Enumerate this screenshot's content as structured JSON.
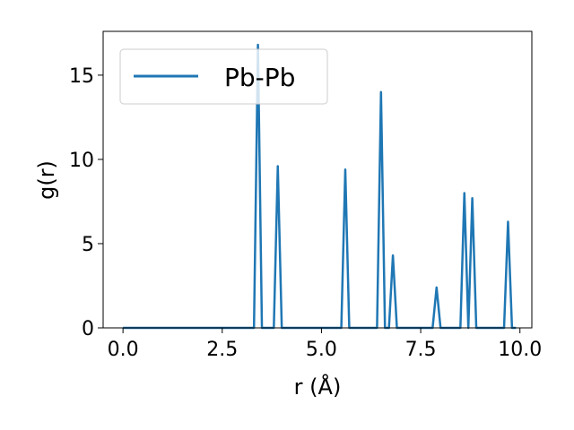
{
  "chart_data": {
    "type": "line",
    "title": "",
    "xlabel": "r (Å)",
    "ylabel": "g(r)",
    "xlim": [
      -0.5,
      10.3
    ],
    "ylim": [
      0,
      17.6
    ],
    "grid": false,
    "legend_position": "top-left",
    "x_ticks": [
      0.0,
      2.5,
      5.0,
      7.5,
      10.0
    ],
    "x_tick_labels": [
      "0.0",
      "2.5",
      "5.0",
      "7.5",
      "10.0"
    ],
    "y_ticks": [
      0,
      5,
      10,
      15
    ],
    "y_tick_labels": [
      "0",
      "5",
      "10",
      "15"
    ],
    "series": [
      {
        "name": "Pb-Pb",
        "color": "#1f77b4",
        "x": [
          0.0,
          3.3,
          3.4,
          3.5,
          3.8,
          3.9,
          4.0,
          5.5,
          5.6,
          5.7,
          6.4,
          6.5,
          6.6,
          6.7,
          6.8,
          6.9,
          7.8,
          7.9,
          8.0,
          8.5,
          8.6,
          8.7,
          8.8,
          8.9,
          9.6,
          9.7,
          9.8,
          9.9
        ],
        "y": [
          0,
          0,
          16.8,
          0,
          0,
          9.6,
          0,
          0,
          9.4,
          0,
          0,
          14.0,
          0,
          0,
          4.3,
          0,
          0,
          2.4,
          0,
          0,
          8.0,
          0,
          7.7,
          0,
          0,
          6.3,
          0,
          0
        ]
      }
    ]
  }
}
